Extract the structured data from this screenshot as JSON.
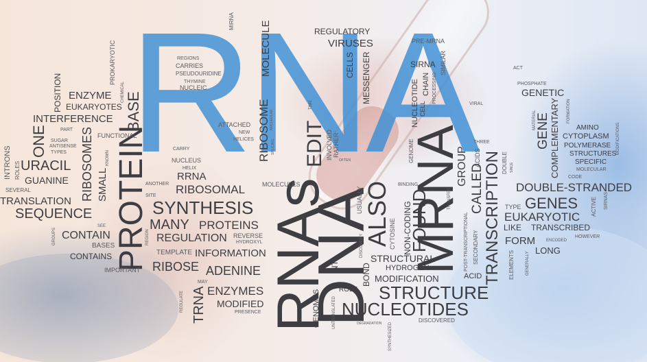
{
  "words": {
    "rna": "RNA",
    "dna": "DNA",
    "rnas": "RNAs",
    "mrna_big": "MRNA",
    "protein": "PROTEIN",
    "synthesis": "SYNTHESIS",
    "structure": "STRUCTURE",
    "nucleotides": "NUCLEOTIDES",
    "genes": "GENES",
    "double_stranded": "DOUBLE-STRANDED",
    "transcription": "TRANSCRIPTION",
    "eukaryotic": "EUKARYOTIC",
    "sequence": "SEQUENCE",
    "translation": "TRANSLATION",
    "many": "MANY",
    "proteins": "PROTEINS",
    "regulation": "REGULATION",
    "information": "INFORMATION",
    "adenine": "ADENINE",
    "ribose": "RIBOSE",
    "enzymes": "ENZYMES",
    "modified": "MODIFIED",
    "trna": "TRNA",
    "ribosomal": "RIBOSOMAL",
    "rrna": "RRNA",
    "uracil": "URACIL",
    "guanine": "GUANINE",
    "one": "ONE",
    "ribosomes": "RIBOSOMES",
    "small": "SMALL",
    "interference": "INTERFERENCE",
    "enzyme": "ENZYME",
    "eukaryotes": "EUKARYOTES",
    "base": "BASE",
    "position": "POSITION",
    "contain": "CONTAIN",
    "contains": "CONTAINS",
    "bases": "BASES",
    "important": "IMPORTANT",
    "template": "TEMPLATE",
    "regulatory": "REGULATORY",
    "viruses": "VIRUSES",
    "molecule": "MOLECULE",
    "ribosome": "RIBOSOME",
    "edit": "EDIT",
    "cells": "CELLS",
    "messenger": "MESSENGER",
    "also": "ALSO",
    "found": "FOUND",
    "structural": "STRUCTURAL",
    "modification": "MODIFICATION",
    "hydrogen": "HYDROGEN",
    "bond": "BOND",
    "genomes": "GENOMES",
    "role": "ROLE",
    "called": "CALLED",
    "group": "GROUP",
    "genetic": "GENETIC",
    "gene": "GENE",
    "complementary": "COMPLEMENTARY",
    "form": "FORM",
    "like": "LIKE",
    "transcribed": "TRANSCRIBED",
    "long": "LONG",
    "acid": "ACID",
    "cytoplasm": "CYTOPLASM",
    "polymerase": "POLYMERASE",
    "structures": "STRUCTURES",
    "specific": "SPECIFIC",
    "amino": "AMINO",
    "sirna_upper": "SIRNA",
    "nucleotide": "NUCLEOTIDE",
    "chain": "CHAIN",
    "cell": "CELL",
    "pre_mrna": "PRE-MRNA",
    "prokaryotic": "PROKARYOTIC",
    "functional": "FUNCTIONAL",
    "attached": "ATTACHED",
    "molecules": "MOLECULES",
    "non_coding": "NON-CODING",
    "cytosine": "CYTOSINE",
    "usually": "USUALLY",
    "involved": "INVOLVED",
    "rather": "RATHER",
    "regions": "REGIONS",
    "carries": "CARRIES",
    "pseudouridine": "PSEUDOURIDINE",
    "thymine": "THYMINE",
    "nucleic": "NUCLEIC",
    "carry": "CARRY",
    "nucleus": "NUCLEUS",
    "helix": "HELIX",
    "another": "ANOTHER",
    "site": "SITE",
    "reverse": "REVERSE",
    "hydroxyl": "HYDROXYL",
    "region": "REGION",
    "may": "MAY",
    "regulate": "REGULATE",
    "presence": "PRESENCE",
    "introns": "INTRONS",
    "roles": "ROLES",
    "several": "SEVERAL",
    "part": "PART",
    "sugar": "SUGAR",
    "antisense": "ANTISENSE",
    "types": "TYPES",
    "see": "SEE",
    "groups": "GROUPS",
    "mirna": "MIRNA",
    "new": "NEW",
    "helices": "HELICES",
    "time": "TIME",
    "similar": "SIMILAR",
    "processing": "PROCESSING",
    "act": "ACT",
    "phosphate": "PHOSPHATE",
    "viral": "VIRAL",
    "three": "THREE",
    "acids": "ACIDS",
    "genome": "GENOME",
    "binding": "BINDING",
    "transfer": "TRANSFER",
    "post_transcriptional": "POST-TRANSCRIPTIONAL",
    "secondary": "SECONDARY",
    "double": "DOUBLE",
    "type": "TYPE",
    "active": "ACTIVE",
    "sirnas": "SIRNAS",
    "however": "HOWEVER",
    "encoded": "ENCODED",
    "elements": "ELEMENTS",
    "generally": "GENERALLY",
    "material": "MATERIAL",
    "formation": "FORMATION",
    "modifications": "MODIFICATIONS",
    "molecular": "MOLECULAR",
    "code": "CODE",
    "discovery": "DISCOVERY",
    "discovered": "DISCOVERED",
    "untranslated": "UNTRANSLATED",
    "degradation": "DEGRADATION",
    "synthesized": "SYNTHESIZED",
    "nt": "NT",
    "often": "OFTEN",
    "known": "KNOWN",
    "chemical": "CHEMICAL",
    "since": "SINCE",
    "nucleolar": "NUCLEOLAR",
    "splicing": "SPLICING"
  }
}
